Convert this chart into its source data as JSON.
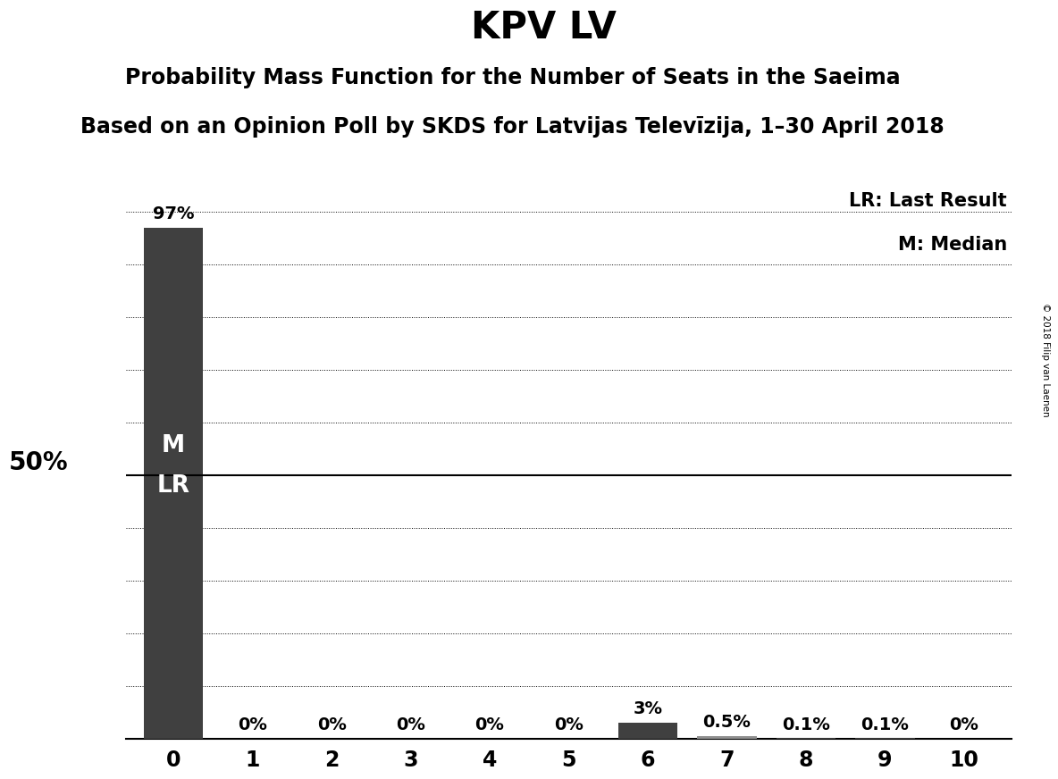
{
  "title": "KPV LV",
  "subtitle": "Probability Mass Function for the Number of Seats in the Saeima",
  "subsubtitle": "Based on an Opinion Poll by SKDS for Latvijas Televīzija, 1–30 April 2018",
  "copyright": "© 2018 Filip van Laenen",
  "categories": [
    0,
    1,
    2,
    3,
    4,
    5,
    6,
    7,
    8,
    9,
    10
  ],
  "values": [
    0.97,
    0.0,
    0.0,
    0.0,
    0.0,
    0.0,
    0.03,
    0.005,
    0.001,
    0.001,
    0.0
  ],
  "bar_labels": [
    "97%",
    "0%",
    "0%",
    "0%",
    "0%",
    "0%",
    "3%",
    "0.5%",
    "0.1%",
    "0.1%",
    "0%"
  ],
  "bar_color_dark": "#404040",
  "bar_color_medium": "#606060",
  "bar_color_light": "#909090",
  "background_color": "#ffffff",
  "ylabel_50": "50%",
  "legend_lr": "LR: Last Result",
  "legend_m": "M: Median",
  "hline_50": 0.5,
  "ylim": [
    0,
    1.05
  ],
  "yticks": [
    0.0,
    0.1,
    0.2,
    0.3,
    0.4,
    0.5,
    0.6,
    0.7,
    0.8,
    0.9,
    1.0
  ],
  "title_fontsize": 30,
  "subtitle_fontsize": 17,
  "subsubtitle_fontsize": 17,
  "label_fontsize": 14,
  "axis_fontsize": 17,
  "ml_fontsize": 19
}
